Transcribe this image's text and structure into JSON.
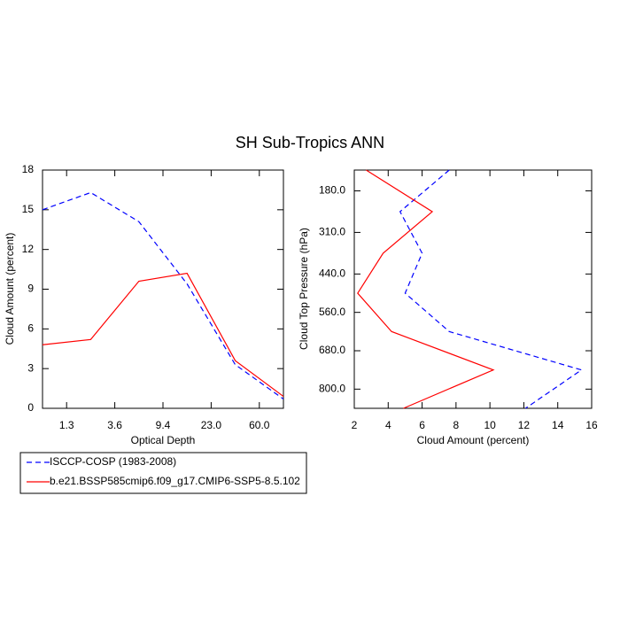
{
  "chart_data": [
    {
      "type": "line",
      "title": "SH Sub-Tropics ANN",
      "xlabel": "Optical Depth",
      "ylabel": "Cloud Amount (percent)",
      "x": [
        0,
        1,
        2,
        3,
        4,
        5
      ],
      "xlim": [
        0,
        5
      ],
      "xticks": [
        {
          "value": 0.5,
          "label": "1.3"
        },
        {
          "value": 1.5,
          "label": "3.6"
        },
        {
          "value": 2.5,
          "label": "9.4"
        },
        {
          "value": 3.5,
          "label": "23.0"
        },
        {
          "value": 4.5,
          "label": "60.0"
        }
      ],
      "ylim": [
        0,
        18
      ],
      "yticks": [
        0,
        3,
        6,
        9,
        12,
        15,
        18
      ],
      "series": [
        {
          "name": "ISCCP-COSP (1983-2008)",
          "color": "#0000ff",
          "dash": true,
          "values": [
            15.0,
            16.3,
            14.1,
            9.4,
            3.3,
            0.7
          ]
        },
        {
          "name": "b.e21.BSSP585cmip6.f09_g17.CMIP6-SSP5-8.5.102",
          "color": "#ff0000",
          "dash": false,
          "values": [
            4.8,
            5.2,
            9.6,
            10.2,
            3.6,
            0.9
          ]
        }
      ]
    },
    {
      "type": "line",
      "xlabel": "Cloud Amount (percent)",
      "ylabel": "Cloud Top Pressure (hPa)",
      "y": [
        115,
        245,
        375,
        500,
        620,
        740,
        860
      ],
      "xlim": [
        2,
        16
      ],
      "xticks": [
        2,
        4,
        6,
        8,
        10,
        12,
        14,
        16
      ],
      "ylim": [
        860,
        115
      ],
      "yticks": [
        {
          "value": 180,
          "label": "180.0"
        },
        {
          "value": 310,
          "label": "310.0"
        },
        {
          "value": 440,
          "label": "440.0"
        },
        {
          "value": 560,
          "label": "560.0"
        },
        {
          "value": 680,
          "label": "680.0"
        },
        {
          "value": 800,
          "label": "800.0"
        }
      ],
      "series": [
        {
          "color": "#0000ff",
          "dash": true,
          "values": [
            7.6,
            4.7,
            6.0,
            5.0,
            7.6,
            15.4,
            12.1
          ]
        },
        {
          "color": "#ff0000",
          "dash": false,
          "values": [
            2.7,
            6.6,
            3.7,
            2.2,
            4.2,
            10.2,
            4.9
          ]
        }
      ]
    }
  ]
}
